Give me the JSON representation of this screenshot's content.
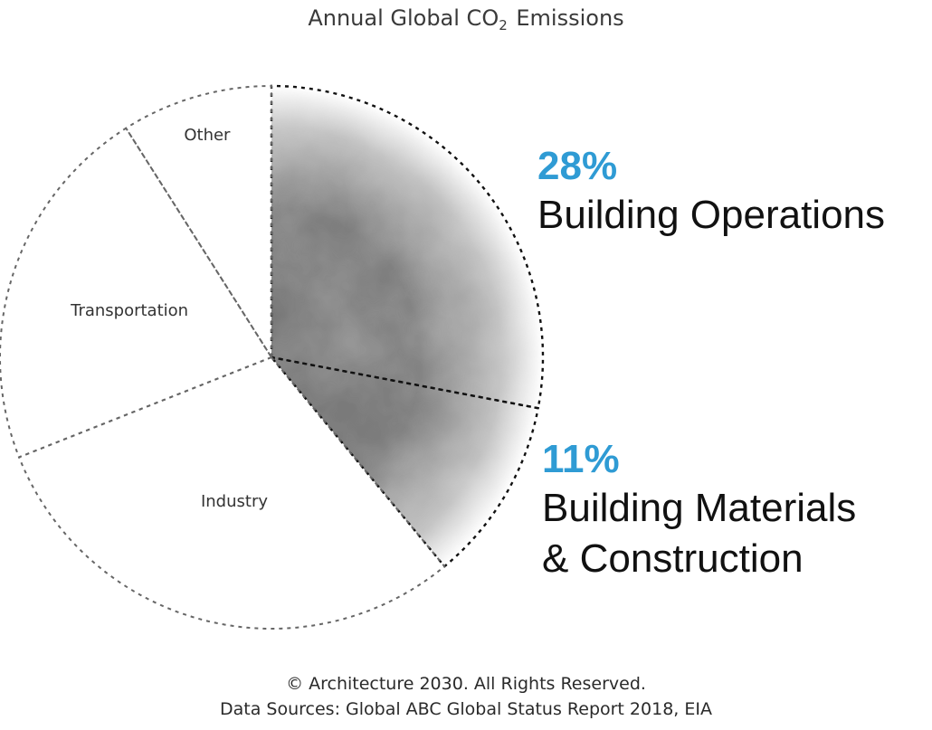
{
  "title": {
    "main": "Annual Global CO",
    "sub": "2",
    "rest": " Emissions"
  },
  "chart_data": {
    "type": "pie",
    "title": "Annual Global CO2 Emissions",
    "slices": [
      {
        "label": "Building Operations",
        "value": 28,
        "display": "28%",
        "highlight": true
      },
      {
        "label": "Building Materials & Construction",
        "value": 11,
        "display": "11%",
        "highlight": true
      },
      {
        "label": "Industry",
        "value": 30,
        "display": "",
        "highlight": false
      },
      {
        "label": "Transportation",
        "value": 22,
        "display": "",
        "highlight": false
      },
      {
        "label": "Other",
        "value": 9,
        "display": "",
        "highlight": false
      }
    ]
  },
  "callouts": {
    "operations": {
      "pct": "28%",
      "label": "Building Operations"
    },
    "materials": {
      "pct": "11%",
      "line1": "Building Materials",
      "line2": "& Construction"
    }
  },
  "footer": {
    "line1": "© Architecture 2030. All Rights Reserved.",
    "line2": "Data Sources: Global ABC Global Status Report 2018, EIA"
  },
  "colors": {
    "accent": "#2f9bd4",
    "smoke": "#2b2b2b",
    "outline": "#666666"
  }
}
